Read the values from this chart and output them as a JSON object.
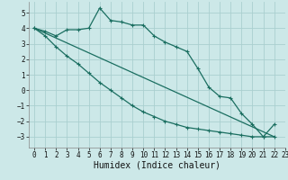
{
  "xlabel": "Humidex (Indice chaleur)",
  "background_color": "#cce8e8",
  "grid_color": "#aacfcf",
  "line_color": "#1a6e60",
  "xlim": [
    -0.5,
    23
  ],
  "ylim": [
    -3.7,
    5.7
  ],
  "yticks": [
    -3,
    -2,
    -1,
    0,
    1,
    2,
    3,
    4,
    5
  ],
  "xticks": [
    0,
    1,
    2,
    3,
    4,
    5,
    6,
    7,
    8,
    9,
    10,
    11,
    12,
    13,
    14,
    15,
    16,
    17,
    18,
    19,
    20,
    21,
    22,
    23
  ],
  "line1_x": [
    0,
    1,
    2,
    3,
    4,
    5,
    6,
    7,
    8,
    9,
    10,
    11,
    12,
    13,
    14,
    15,
    16,
    17,
    18,
    19,
    20,
    21,
    22
  ],
  "line1_y": [
    4.0,
    3.8,
    3.5,
    3.9,
    3.9,
    4.0,
    5.3,
    4.5,
    4.4,
    4.2,
    4.2,
    3.5,
    3.1,
    2.8,
    2.5,
    1.4,
    0.2,
    -0.4,
    -0.5,
    -1.5,
    -2.2,
    -3.0,
    -3.0
  ],
  "line2_x": [
    0,
    1,
    2,
    3,
    4,
    5,
    6,
    7,
    8,
    9,
    10,
    11,
    12,
    13,
    14,
    15,
    16,
    17,
    18,
    19,
    20,
    21,
    22
  ],
  "line2_y": [
    4.0,
    3.5,
    2.8,
    2.2,
    1.7,
    1.1,
    0.5,
    0.0,
    -0.5,
    -1.0,
    -1.4,
    -1.7,
    -2.0,
    -2.2,
    -2.4,
    -2.5,
    -2.6,
    -2.7,
    -2.8,
    -2.9,
    -3.0,
    -3.0,
    -2.2
  ],
  "line3_x": [
    0,
    22
  ],
  "line3_y": [
    4.0,
    -3.0
  ],
  "xlabel_fontsize": 7,
  "tick_fontsize": 5.5
}
